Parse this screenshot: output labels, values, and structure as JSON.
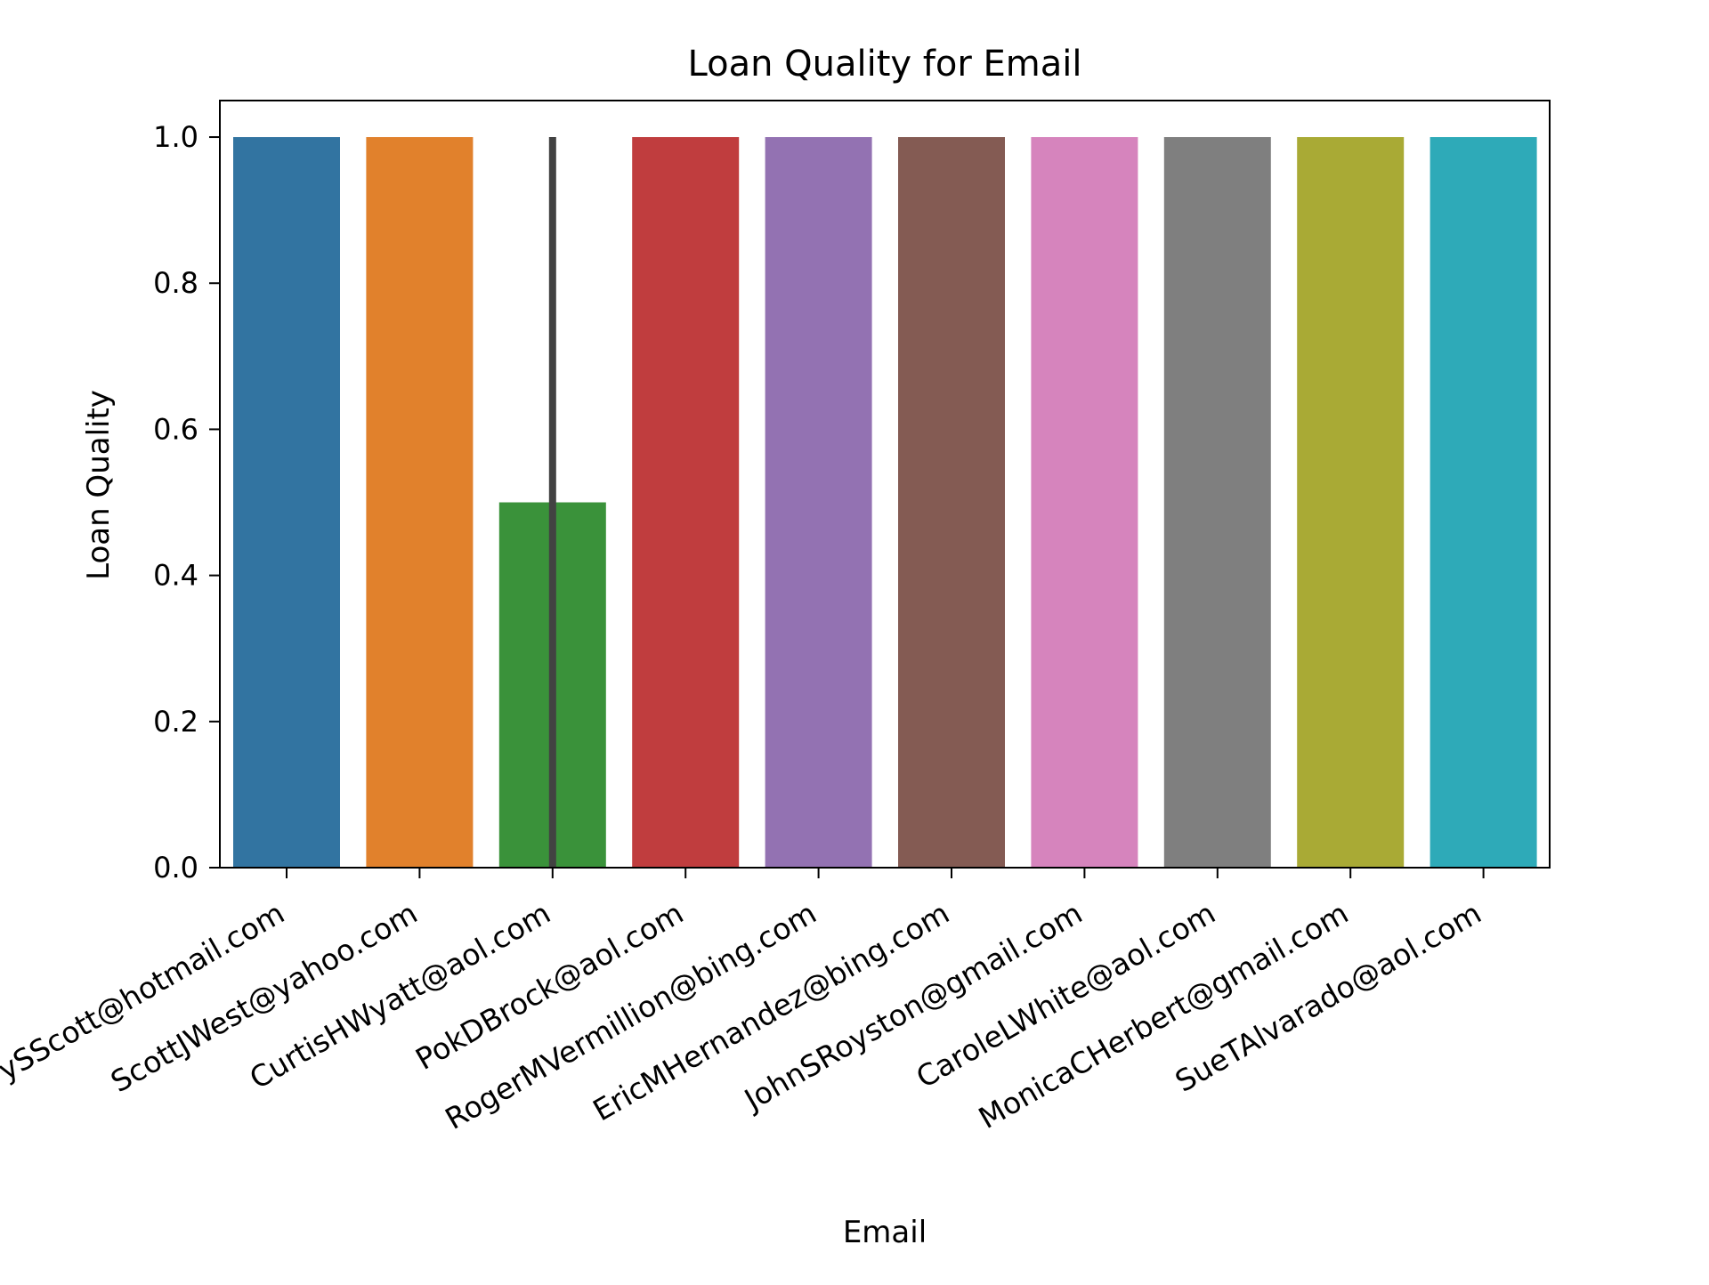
{
  "chart_data": {
    "type": "bar",
    "title": "Loan Quality for Email",
    "xlabel": "Email",
    "ylabel": "Loan Quality",
    "ylim": [
      0,
      1.05
    ],
    "yticks": [
      0.0,
      0.2,
      0.4,
      0.6,
      0.8,
      1.0
    ],
    "ytick_labels": [
      "0.0",
      "0.2",
      "0.4",
      "0.6",
      "0.8",
      "1.0"
    ],
    "grid": false,
    "legend": "none",
    "categories": [
      "ZacharySScott@hotmail.com",
      "ScottJWest@yahoo.com",
      "CurtisHWyatt@aol.com",
      "PokDBrock@aol.com",
      "RogerMVermillion@bing.com",
      "EricMHernandez@bing.com",
      "JohnSRoyston@gmail.com",
      "CaroleLWhite@aol.com",
      "MonicaCHerbert@gmail.com",
      "SueTAlvarado@aol.com"
    ],
    "values": [
      1.0,
      1.0,
      0.5,
      1.0,
      1.0,
      1.0,
      1.0,
      1.0,
      1.0,
      1.0
    ],
    "error_bars": [
      null,
      null,
      [
        0.0,
        1.0
      ],
      null,
      null,
      null,
      null,
      null,
      null,
      null
    ],
    "colors": [
      "#3274a1",
      "#e1812c",
      "#3a923a",
      "#c03d3e",
      "#9372b2",
      "#845b53",
      "#d684bd",
      "#7f7f7f",
      "#a9aa35",
      "#2eaab8"
    ],
    "error_bar_color": "#424242"
  }
}
